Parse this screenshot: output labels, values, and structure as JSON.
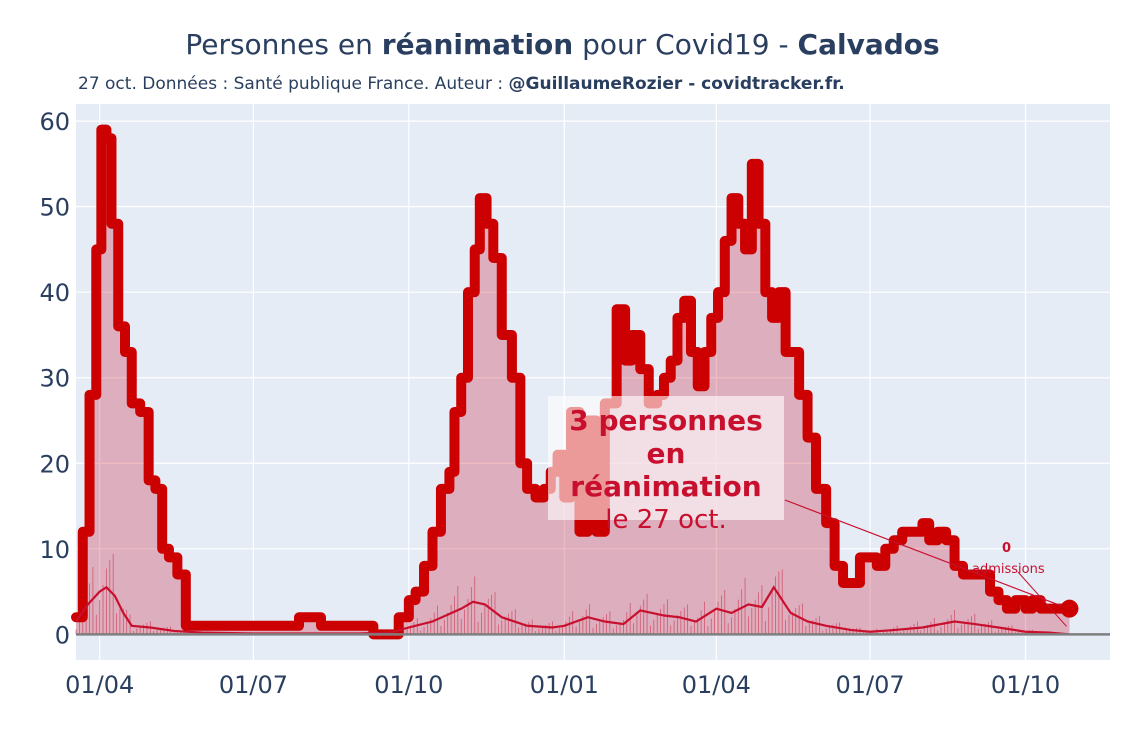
{
  "header": {
    "title_pre": "Personnes en ",
    "title_bold1": "réanimation",
    "title_mid": " pour Covid19 - ",
    "title_bold2": "Calvados",
    "subtitle_pre": "27 oct. Données : Santé publique France. Auteur : ",
    "subtitle_bold": "@GuillaumeRozier - covidtracker.fr."
  },
  "annotation": {
    "line1": "3 personnes",
    "line2": "en réanimation",
    "line3": "le 27 oct.",
    "admissions_count": "0",
    "admissions_label": "admissions"
  },
  "colors": {
    "main_line": "#cc0000",
    "fill": "rgba(200,16,46,0.28)",
    "admissions": "#c8102e",
    "plot_bg": "#e5ecf6",
    "grid": "#ffffff",
    "zero_line": "#7f7f7f"
  },
  "chart_data": {
    "type": "area",
    "title": "Personnes en réanimation pour Covid19 - Calvados",
    "x_tick_labels": [
      "01/04",
      "01/07",
      "01/10",
      "01/01",
      "01/04",
      "01/07",
      "01/10"
    ],
    "x_tick_dates": [
      "2020-04-01",
      "2020-07-01",
      "2020-10-01",
      "2021-01-01",
      "2021-04-01",
      "2021-07-01",
      "2021-10-01"
    ],
    "ylim": [
      -3,
      62
    ],
    "y_ticks": [
      0,
      10,
      20,
      30,
      40,
      50,
      60
    ],
    "grid": true,
    "x_start": "2020-03-18",
    "x_end": "2021-11-20",
    "series": [
      {
        "name": "réanimation",
        "x": [
          "2020-03-18",
          "2020-03-22",
          "2020-03-26",
          "2020-03-30",
          "2020-04-02",
          "2020-04-05",
          "2020-04-08",
          "2020-04-12",
          "2020-04-16",
          "2020-04-20",
          "2020-04-25",
          "2020-04-30",
          "2020-05-04",
          "2020-05-08",
          "2020-05-12",
          "2020-05-17",
          "2020-05-22",
          "2020-05-26",
          "2020-06-01",
          "2020-06-15",
          "2020-07-01",
          "2020-07-15",
          "2020-07-25",
          "2020-07-28",
          "2020-08-10",
          "2020-08-20",
          "2020-08-25",
          "2020-08-28",
          "2020-09-10",
          "2020-09-15",
          "2020-09-20",
          "2020-09-25",
          "2020-10-01",
          "2020-10-05",
          "2020-10-10",
          "2020-10-15",
          "2020-10-20",
          "2020-10-25",
          "2020-10-28",
          "2020-11-01",
          "2020-11-05",
          "2020-11-09",
          "2020-11-12",
          "2020-11-16",
          "2020-11-20",
          "2020-11-25",
          "2020-12-01",
          "2020-12-06",
          "2020-12-10",
          "2020-12-15",
          "2020-12-20",
          "2020-12-24",
          "2020-12-28",
          "2021-01-01",
          "2021-01-05",
          "2021-01-10",
          "2021-01-15",
          "2021-01-20",
          "2021-01-25",
          "2021-02-01",
          "2021-02-06",
          "2021-02-10",
          "2021-02-15",
          "2021-02-20",
          "2021-02-25",
          "2021-03-01",
          "2021-03-05",
          "2021-03-09",
          "2021-03-13",
          "2021-03-17",
          "2021-03-21",
          "2021-03-25",
          "2021-03-29",
          "2021-04-02",
          "2021-04-06",
          "2021-04-10",
          "2021-04-14",
          "2021-04-18",
          "2021-04-22",
          "2021-04-26",
          "2021-04-30",
          "2021-05-04",
          "2021-05-08",
          "2021-05-12",
          "2021-05-16",
          "2021-05-20",
          "2021-05-25",
          "2021-05-30",
          "2021-06-05",
          "2021-06-10",
          "2021-06-15",
          "2021-06-20",
          "2021-06-25",
          "2021-07-01",
          "2021-07-05",
          "2021-07-10",
          "2021-07-15",
          "2021-07-20",
          "2021-07-25",
          "2021-08-01",
          "2021-08-05",
          "2021-08-10",
          "2021-08-15",
          "2021-08-20",
          "2021-08-25",
          "2021-09-01",
          "2021-09-05",
          "2021-09-10",
          "2021-09-15",
          "2021-09-20",
          "2021-09-25",
          "2021-10-01",
          "2021-10-05",
          "2021-10-10",
          "2021-10-15",
          "2021-10-20",
          "2021-10-24",
          "2021-10-27"
        ],
        "values": [
          2,
          12,
          28,
          45,
          59,
          58,
          48,
          36,
          33,
          27,
          26,
          18,
          17,
          10,
          9,
          7,
          1,
          1,
          1,
          1,
          1,
          1,
          1,
          2,
          1,
          1,
          1,
          1,
          0,
          0,
          0,
          2,
          4,
          5,
          8,
          12,
          17,
          19,
          26,
          30,
          40,
          45,
          51,
          48,
          44,
          35,
          30,
          20,
          17,
          16,
          17,
          19,
          21,
          16,
          26,
          12,
          25,
          12,
          27,
          38,
          32,
          35,
          31,
          27,
          28,
          30,
          32,
          37,
          39,
          33,
          29,
          33,
          37,
          40,
          46,
          51,
          48,
          45,
          55,
          48,
          40,
          37,
          40,
          33,
          33,
          28,
          23,
          17,
          13,
          8,
          6,
          6,
          9,
          9,
          8,
          10,
          11,
          12,
          12,
          13,
          11,
          12,
          11,
          8,
          7,
          7,
          7,
          5,
          4,
          3,
          4,
          3,
          4,
          3,
          3,
          3,
          3,
          3
        ],
        "color": "#cc0000"
      },
      {
        "name": "admissions",
        "x": [
          "2020-03-18",
          "2020-03-25",
          "2020-04-01",
          "2020-04-05",
          "2020-04-10",
          "2020-04-15",
          "2020-04-20",
          "2020-05-01",
          "2020-05-15",
          "2020-06-01",
          "2020-07-01",
          "2020-08-01",
          "2020-09-01",
          "2020-09-20",
          "2020-10-01",
          "2020-10-15",
          "2020-11-01",
          "2020-11-08",
          "2020-11-15",
          "2020-11-25",
          "2020-12-10",
          "2020-12-25",
          "2021-01-01",
          "2021-01-15",
          "2021-01-25",
          "2021-02-05",
          "2021-02-15",
          "2021-03-01",
          "2021-03-10",
          "2021-03-20",
          "2021-04-01",
          "2021-04-10",
          "2021-04-20",
          "2021-04-28",
          "2021-05-05",
          "2021-05-15",
          "2021-05-25",
          "2021-06-05",
          "2021-06-20",
          "2021-07-01",
          "2021-07-15",
          "2021-08-01",
          "2021-08-20",
          "2021-09-01",
          "2021-09-15",
          "2021-10-01",
          "2021-10-15",
          "2021-10-27"
        ],
        "values": [
          1.5,
          3.5,
          5,
          5.5,
          4.5,
          2.5,
          1,
          0.8,
          0.4,
          0.2,
          0.1,
          0.1,
          0.1,
          0.2,
          0.8,
          1.5,
          3,
          3.8,
          3.5,
          2,
          1,
          0.8,
          1,
          2,
          1.5,
          1.2,
          2.8,
          2.2,
          2,
          1.5,
          3,
          2.5,
          3.5,
          3.2,
          5.5,
          2.5,
          1.5,
          1,
          0.5,
          0.3,
          0.5,
          0.8,
          1.5,
          1.2,
          0.8,
          0.3,
          0.2,
          0
        ],
        "color": "#c8102e"
      }
    ]
  }
}
